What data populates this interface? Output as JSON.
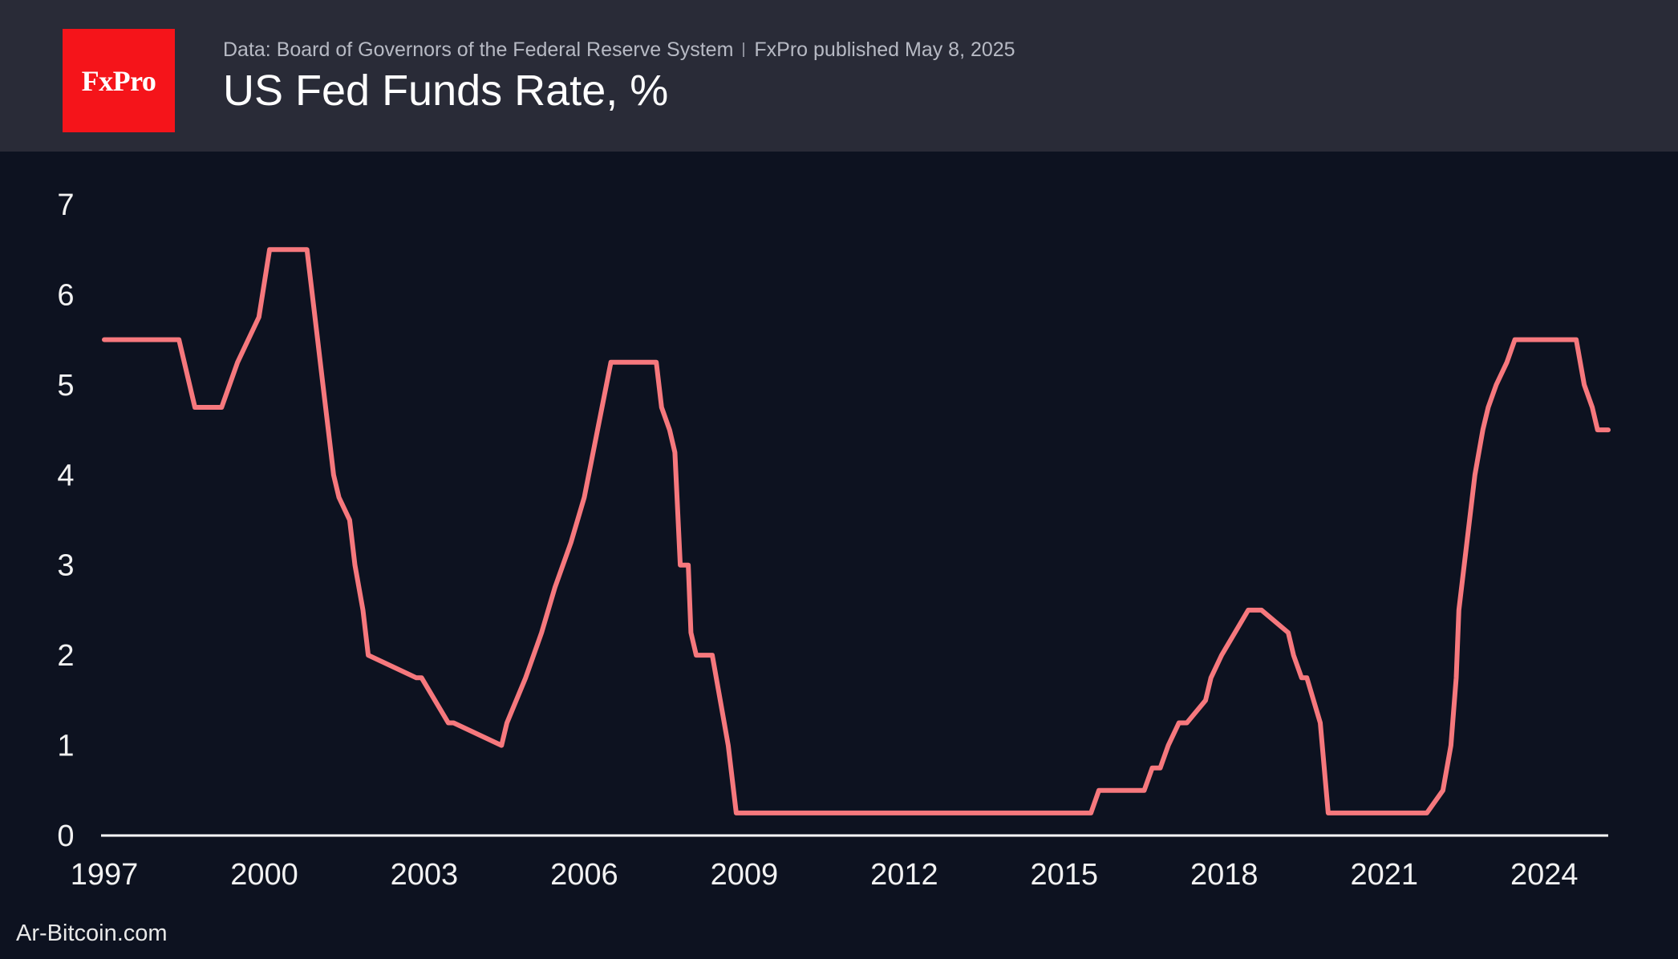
{
  "header": {
    "logo_text": "FxPro",
    "source": "Data: Board of Governors of the Federal Reserve System",
    "publisher": "FxPro published May 8, 2025",
    "title": "US Fed Funds Rate, %"
  },
  "watermark": "Ar-Bitcoin.com",
  "colors": {
    "background": "#0d1220",
    "header": "#292b37",
    "logo": "#f5141a",
    "line": "#f6787d",
    "axis": "#ffffff"
  },
  "chart_data": {
    "type": "line",
    "title": "US Fed Funds Rate, %",
    "xlabel": "",
    "ylabel": "",
    "xlim": [
      1997.0,
      2025.2
    ],
    "ylim": [
      0,
      7
    ],
    "x_ticks": [
      1997,
      2000,
      2003,
      2006,
      2009,
      2012,
      2015,
      2018,
      2021,
      2024
    ],
    "y_ticks": [
      0,
      1,
      2,
      3,
      4,
      5,
      6,
      7
    ],
    "grid": false,
    "legend": "none",
    "series": [
      {
        "x": [
          1997.0,
          1998.4,
          1998.7,
          1998.9,
          1999.2,
          1999.5,
          1999.7,
          1999.9,
          2000.1,
          2000.5,
          2000.8,
          2001.0,
          2001.1,
          2001.2,
          2001.3,
          2001.4,
          2001.6,
          2001.7,
          2001.85,
          2001.95,
          2002.85,
          2002.95,
          2003.45,
          2003.55,
          2004.45,
          2004.55,
          2004.9,
          2005.2,
          2005.45,
          2005.75,
          2006.0,
          2006.25,
          2006.5,
          2007.35,
          2007.45,
          2007.6,
          2007.7,
          2007.8,
          2007.95,
          2008.0,
          2008.1,
          2008.2,
          2008.4,
          2008.7,
          2008.85,
          2008.95,
          2015.5,
          2015.65,
          2016.5,
          2016.65,
          2016.8,
          2016.95,
          2017.15,
          2017.3,
          2017.65,
          2017.75,
          2017.95,
          2018.2,
          2018.45,
          2018.7,
          2019.2,
          2019.3,
          2019.45,
          2019.55,
          2019.8,
          2019.95,
          2020.0,
          2020.05,
          2021.8,
          2022.1,
          2022.25,
          2022.35,
          2022.4,
          2022.55,
          2022.7,
          2022.85,
          2022.95,
          2023.1,
          2023.3,
          2023.45,
          2023.55,
          2024.6,
          2024.75,
          2024.9,
          2025.0,
          2025.2
        ],
        "values": [
          5.5,
          5.5,
          4.75,
          4.75,
          4.75,
          5.25,
          5.5,
          5.75,
          6.5,
          6.5,
          6.5,
          5.5,
          5.0,
          4.5,
          4.0,
          3.75,
          3.5,
          3.0,
          2.5,
          2.0,
          1.75,
          1.75,
          1.25,
          1.25,
          1.0,
          1.25,
          1.75,
          2.25,
          2.75,
          3.25,
          3.75,
          4.5,
          5.25,
          5.25,
          4.75,
          4.5,
          4.25,
          3.0,
          3.0,
          2.25,
          2.0,
          2.0,
          2.0,
          1.0,
          0.25,
          0.25,
          0.25,
          0.5,
          0.5,
          0.75,
          0.75,
          1.0,
          1.25,
          1.25,
          1.5,
          1.75,
          2.0,
          2.25,
          2.5,
          2.5,
          2.25,
          2.0,
          1.75,
          1.75,
          1.25,
          0.25,
          0.25,
          0.25,
          0.25,
          0.5,
          1.0,
          1.75,
          2.5,
          3.25,
          4.0,
          4.5,
          4.75,
          5.0,
          5.25,
          5.5,
          5.5,
          5.5,
          5.0,
          4.75,
          4.5,
          4.5
        ]
      }
    ]
  }
}
